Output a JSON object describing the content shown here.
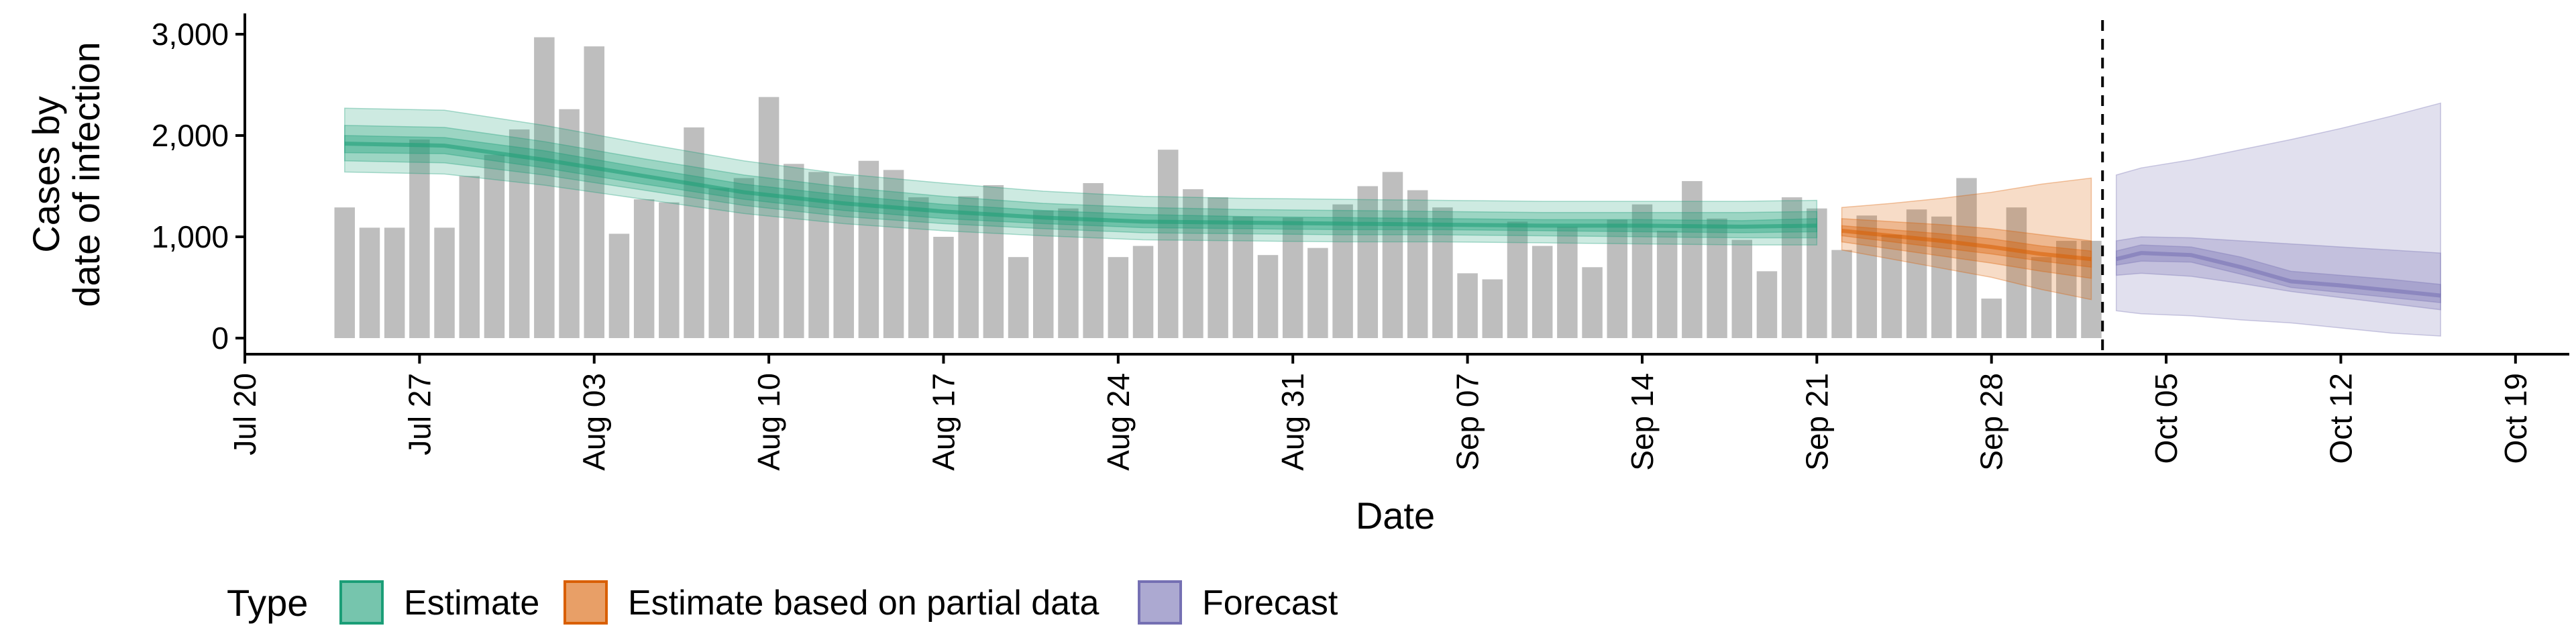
{
  "chart_data": {
    "type": "bar",
    "xlabel": "Date",
    "ylabel_lines": [
      "Cases by",
      "date of infection"
    ],
    "ylim": [
      0,
      3100
    ],
    "yticks": [
      0,
      1000,
      2000,
      3000
    ],
    "ytick_labels": [
      "0",
      "1,000",
      "2,000",
      "3,000"
    ],
    "x_start": "2020-07-20",
    "x_end": "2020-10-20",
    "xticks": [
      "2020-07-20",
      "2020-07-27",
      "2020-08-03",
      "2020-08-10",
      "2020-08-17",
      "2020-08-24",
      "2020-08-31",
      "2020-09-07",
      "2020-09-14",
      "2020-09-21",
      "2020-09-28",
      "2020-10-05",
      "2020-10-12",
      "2020-10-19"
    ],
    "xtick_labels": [
      "Jul 20",
      "Jul 27",
      "Aug 03",
      "Aug 10",
      "Aug 17",
      "Aug 24",
      "Aug 31",
      "Sep 07",
      "Sep 14",
      "Sep 21",
      "Sep 28",
      "Oct 05",
      "Oct 12",
      "Oct 19"
    ],
    "bars_start_date": "2020-07-24",
    "bar_values": [
      1290,
      1090,
      1090,
      1960,
      1090,
      1600,
      1810,
      2060,
      2970,
      2260,
      2880,
      1030,
      1370,
      1340,
      2080,
      1480,
      1580,
      2380,
      1720,
      1640,
      1600,
      1750,
      1660,
      1390,
      1000,
      1400,
      1510,
      800,
      1260,
      1280,
      1530,
      800,
      910,
      1860,
      1470,
      1390,
      1200,
      820,
      1190,
      890,
      1320,
      1500,
      1640,
      1460,
      1290,
      640,
      580,
      1150,
      910,
      1100,
      700,
      1170,
      1320,
      1060,
      1550,
      1180,
      970,
      660,
      1390,
      1280,
      870,
      1210,
      1020,
      1270,
      1200,
      1580,
      390,
      1290,
      800,
      960,
      960
    ],
    "bar_color": "#bebebe",
    "forecast_date": "2020-10-02",
    "series_colors": {
      "Estimate": "#1b9e77",
      "Estimate based on partial data": "#d95f02",
      "Forecast": "#7570b3"
    },
    "estimate": {
      "dates": [
        "2020-07-24",
        "2020-07-28",
        "2020-08-01",
        "2020-08-05",
        "2020-08-09",
        "2020-08-13",
        "2020-08-17",
        "2020-08-21",
        "2020-08-25",
        "2020-08-29",
        "2020-09-02",
        "2020-09-06",
        "2020-09-10",
        "2020-09-14",
        "2020-09-18",
        "2020-09-21"
      ],
      "median": [
        1920,
        1900,
        1760,
        1600,
        1440,
        1330,
        1250,
        1190,
        1150,
        1140,
        1130,
        1120,
        1110,
        1110,
        1100,
        1110
      ],
      "lower20": [
        1830,
        1820,
        1680,
        1520,
        1370,
        1260,
        1180,
        1130,
        1090,
        1080,
        1070,
        1070,
        1060,
        1050,
        1040,
        1050
      ],
      "upper20": [
        2000,
        1980,
        1850,
        1680,
        1520,
        1410,
        1320,
        1260,
        1220,
        1200,
        1190,
        1180,
        1170,
        1170,
        1160,
        1180
      ],
      "lower50": [
        1750,
        1730,
        1610,
        1460,
        1310,
        1200,
        1130,
        1080,
        1040,
        1030,
        1020,
        1020,
        1010,
        1000,
        990,
        990
      ],
      "upper50": [
        2100,
        2080,
        1940,
        1770,
        1610,
        1490,
        1400,
        1330,
        1290,
        1270,
        1260,
        1250,
        1240,
        1240,
        1240,
        1250
      ],
      "lower90": [
        1640,
        1620,
        1510,
        1370,
        1230,
        1130,
        1060,
        1010,
        970,
        960,
        950,
        950,
        940,
        930,
        920,
        920
      ],
      "upper90": [
        2270,
        2250,
        2100,
        1920,
        1750,
        1620,
        1530,
        1450,
        1400,
        1380,
        1370,
        1360,
        1350,
        1350,
        1350,
        1360
      ]
    },
    "partial": {
      "dates": [
        "2020-09-22",
        "2020-09-24",
        "2020-09-26",
        "2020-09-28",
        "2020-09-30",
        "2020-10-02"
      ],
      "median": [
        1060,
        1010,
        960,
        900,
        830,
        780
      ],
      "lower20": [
        1010,
        950,
        890,
        830,
        760,
        700
      ],
      "upper20": [
        1110,
        1070,
        1030,
        980,
        910,
        860
      ],
      "lower50": [
        950,
        880,
        810,
        740,
        660,
        590
      ],
      "upper50": [
        1180,
        1150,
        1120,
        1080,
        1020,
        960
      ],
      "lower90": [
        870,
        780,
        690,
        600,
        480,
        380
      ],
      "upper90": [
        1290,
        1330,
        1380,
        1440,
        1520,
        1580
      ]
    },
    "forecast": {
      "dates": [
        "2020-10-03",
        "2020-10-04",
        "2020-10-06",
        "2020-10-08",
        "2020-10-10",
        "2020-10-12",
        "2020-10-14",
        "2020-10-16"
      ],
      "median": [
        780,
        840,
        820,
        700,
        560,
        520,
        470,
        420
      ],
      "lower20": [
        720,
        760,
        750,
        630,
        500,
        450,
        400,
        350
      ],
      "upper20": [
        860,
        920,
        900,
        800,
        660,
        620,
        580,
        530
      ],
      "lower50": [
        620,
        640,
        610,
        540,
        460,
        400,
        340,
        280
      ],
      "upper50": [
        960,
        1000,
        990,
        960,
        930,
        900,
        870,
        840
      ],
      "lower90": [
        270,
        240,
        220,
        180,
        150,
        100,
        50,
        20
      ],
      "upper90": [
        1610,
        1680,
        1760,
        1860,
        1960,
        2070,
        2190,
        2320
      ]
    },
    "legend": {
      "title": "Type",
      "items": [
        "Estimate",
        "Estimate based on partial data",
        "Forecast"
      ],
      "position": "bottom"
    }
  }
}
